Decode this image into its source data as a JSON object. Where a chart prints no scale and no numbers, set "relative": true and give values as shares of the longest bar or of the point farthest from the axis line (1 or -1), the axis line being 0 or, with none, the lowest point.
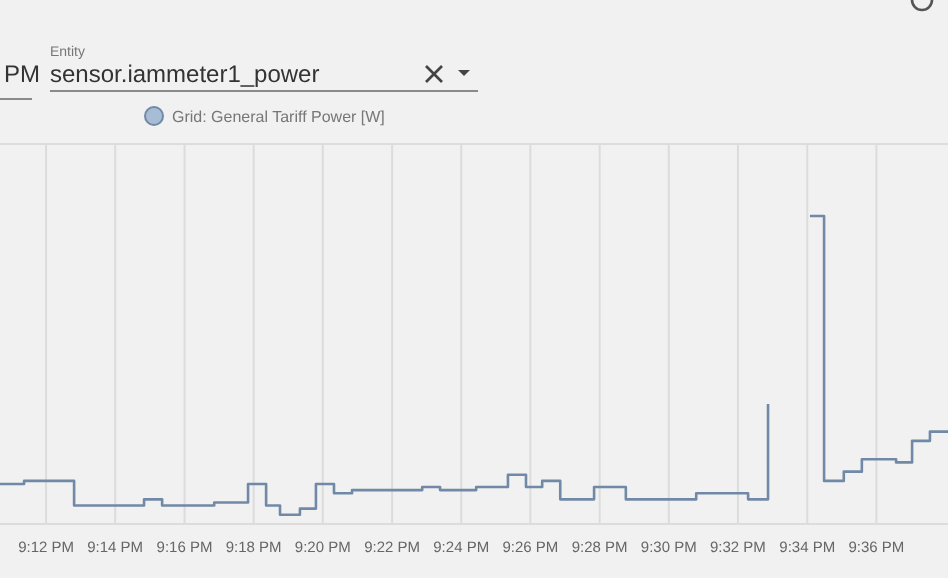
{
  "chart_data": {
    "type": "step",
    "relative": true,
    "legend": "top",
    "grid": "x",
    "marker": "none",
    "line_style": "solid",
    "annotations": [
      "PM",
      "Entity",
      "sensor.iammeter1_power"
    ],
    "xlim": [
      21.1778,
      21.6345
    ],
    "xticks": [
      {
        "value": 21.2,
        "label": "9:12 PM"
      },
      {
        "value": 21.2333,
        "label": "9:14 PM"
      },
      {
        "value": 21.2667,
        "label": "9:16 PM"
      },
      {
        "value": 21.3,
        "label": "9:18 PM"
      },
      {
        "value": 21.3333,
        "label": "9:20 PM"
      },
      {
        "value": 21.3667,
        "label": "9:22 PM"
      },
      {
        "value": 21.4,
        "label": "9:24 PM"
      },
      {
        "value": 21.4333,
        "label": "9:26 PM"
      },
      {
        "value": 21.4667,
        "label": "9:28 PM"
      },
      {
        "value": 21.5,
        "label": "9:30 PM"
      },
      {
        "value": 21.5333,
        "label": "9:32 PM"
      },
      {
        "value": 21.5667,
        "label": "9:34 PM"
      },
      {
        "value": 21.6,
        "label": "9:36 PM"
      }
    ],
    "series": [
      {
        "name": "Grid: General Tariff Power [W]",
        "color": "#7189a6",
        "x": [
          21.1778,
          21.1894,
          21.2135,
          21.2308,
          21.2472,
          21.2559,
          21.281,
          21.2973,
          21.306,
          21.3127,
          21.3223,
          21.33,
          21.3387,
          21.3474,
          21.3812,
          21.3898,
          21.4072,
          21.4225,
          21.4312,
          21.439,
          21.4477,
          21.464,
          21.4793,
          21.5132,
          21.5382,
          21.5478,
          21.5575,
          21.568,
          21.5748,
          21.5843,
          21.593,
          21.6095,
          21.6172,
          21.6258,
          21.6345
        ],
        "values": [
          0.13,
          0.14,
          0.06,
          0.06,
          0.08,
          0.06,
          0.07,
          0.13,
          0.06,
          0.03,
          0.05,
          0.13,
          0.1,
          0.11,
          0.12,
          0.11,
          0.12,
          0.16,
          0.12,
          0.14,
          0.08,
          0.12,
          0.08,
          0.1,
          0.08,
          0.39,
          null,
          1,
          0.14,
          0.17,
          0.21,
          0.2,
          0.27,
          0.3,
          0.3
        ]
      }
    ]
  }
}
